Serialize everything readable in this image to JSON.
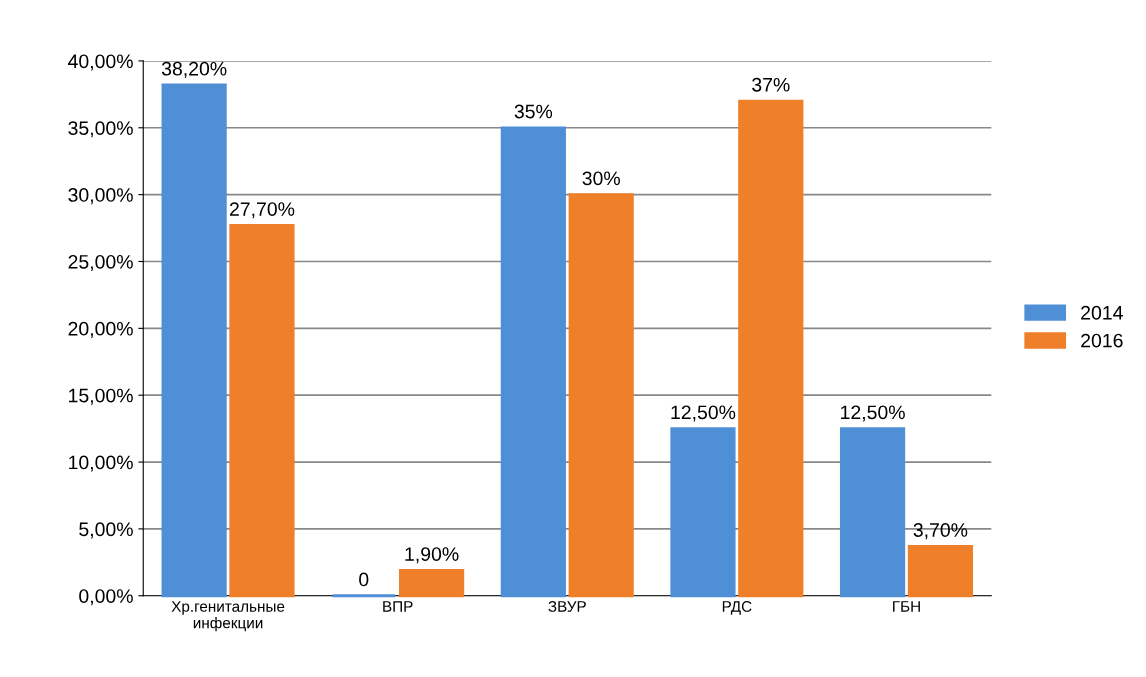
{
  "chart_data": {
    "type": "bar",
    "categories": [
      "Хр.генитальные инфекции",
      "ВПР",
      "ЗВУР",
      "РДС",
      "ГБН"
    ],
    "series": [
      {
        "name": "2014",
        "color": "#4f8fd6",
        "values": [
          38.2,
          0,
          35,
          12.5,
          12.5
        ],
        "value_labels": [
          "38,20%",
          "0",
          "35%",
          "12,50%",
          "12,50%"
        ]
      },
      {
        "name": "2016",
        "color": "#f07f2a",
        "values": [
          27.7,
          1.9,
          30,
          37,
          3.7
        ],
        "value_labels": [
          "27,70%",
          "1,90%",
          "30%",
          "37%",
          "3,70%"
        ]
      }
    ],
    "ylim": [
      0,
      40
    ],
    "yticks": [
      {
        "value": 0,
        "label": "0,00%"
      },
      {
        "value": 5,
        "label": "5,00%"
      },
      {
        "value": 10,
        "label": "10,00%"
      },
      {
        "value": 15,
        "label": "15,00%"
      },
      {
        "value": 20,
        "label": "20,00%"
      },
      {
        "value": 25,
        "label": "25,00%"
      },
      {
        "value": 30,
        "label": "30,00%"
      },
      {
        "value": 35,
        "label": "35,00%"
      },
      {
        "value": 40,
        "label": "40,00%"
      }
    ],
    "grid": "y",
    "legend": "right"
  }
}
